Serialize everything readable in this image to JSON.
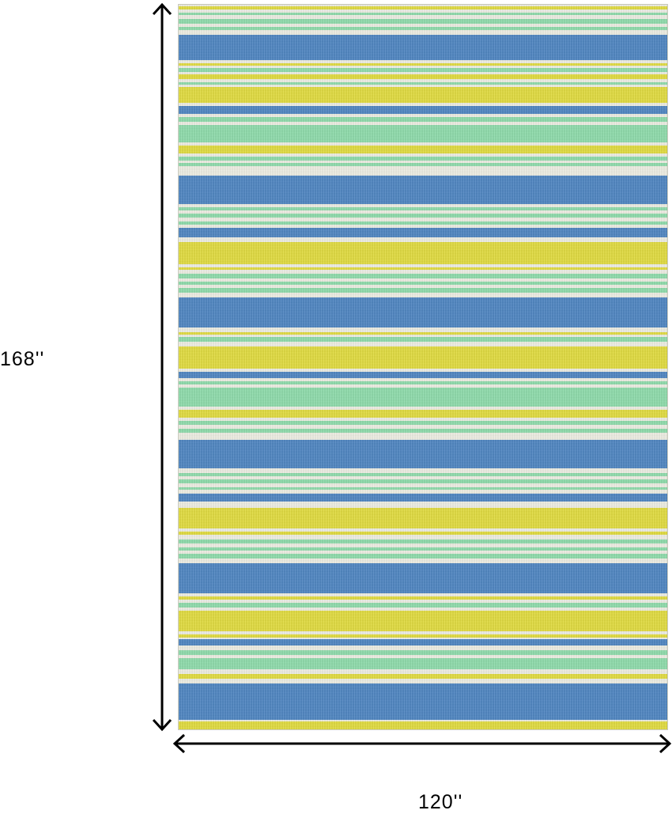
{
  "dimensions": {
    "height_label": "168''",
    "width_label": "120''"
  },
  "colors": {
    "blue": "#4f86c2",
    "yellow": "#e2dc40",
    "green": "#8fdcac",
    "cream": "#eeeee4"
  },
  "stripe_pattern": [
    "green",
    "blue",
    "green",
    "yellow",
    "blue",
    "green",
    "yellow",
    "green",
    "blue",
    "green",
    "blue",
    "yellow",
    "green",
    "blue",
    "yellow",
    "blue",
    "green",
    "yellow",
    "green",
    "blue",
    "green",
    "blue",
    "yellow",
    "green",
    "blue",
    "green",
    "yellow",
    "green",
    "blue",
    "green"
  ]
}
